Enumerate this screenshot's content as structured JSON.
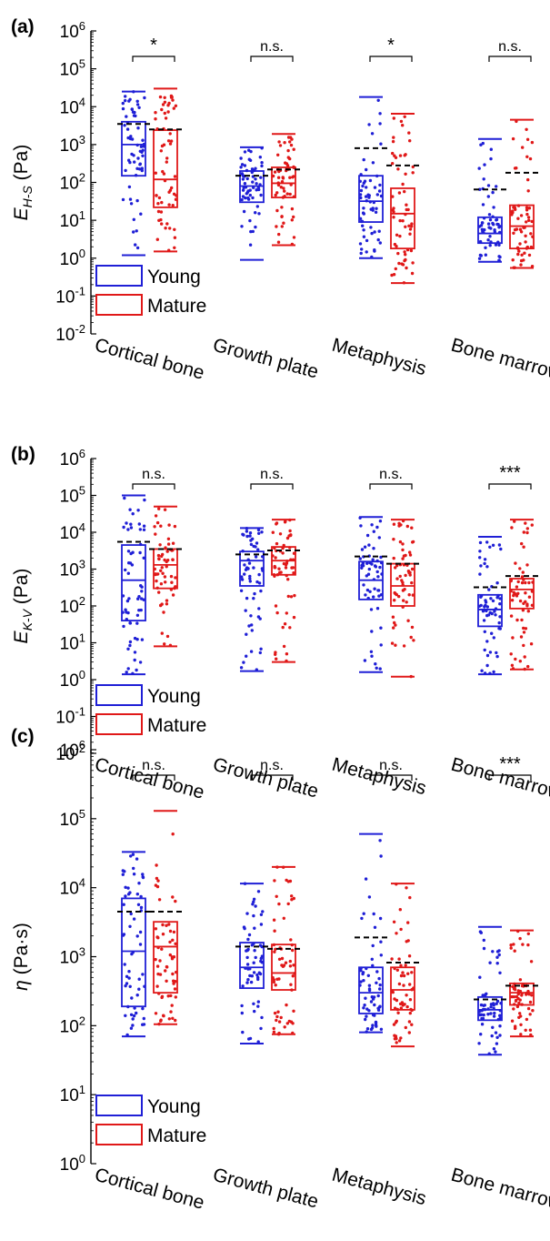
{
  "colors": {
    "young": "#1f1fd6",
    "mature": "#e01818",
    "axis": "#000000",
    "mean": "#000000"
  },
  "chart_data": [
    {
      "panel_label": "(a)",
      "type": "box",
      "yscale": "log",
      "ylim": [
        0.01,
        1000000
      ],
      "y_ticks": [
        {
          "v": 0.01,
          "m": "10",
          "e": "-2"
        },
        {
          "v": 0.1,
          "m": "10",
          "e": "-1"
        },
        {
          "v": 1,
          "m": "10",
          "e": "0"
        },
        {
          "v": 10,
          "m": "10",
          "e": "1"
        },
        {
          "v": 100,
          "m": "10",
          "e": "2"
        },
        {
          "v": 1000,
          "m": "10",
          "e": "3"
        },
        {
          "v": 10000,
          "m": "10",
          "e": "4"
        },
        {
          "v": 100000,
          "m": "10",
          "e": "5"
        },
        {
          "v": 1000000,
          "m": "10",
          "e": "6"
        }
      ],
      "ylabel": {
        "main": "E",
        "sub": "H-S",
        "unit": " (Pa)"
      },
      "categories": [
        "Cortical bone",
        "Growth plate",
        "Metaphysis",
        "Bone marrow"
      ],
      "significance": [
        "*",
        "n.s.",
        "*",
        "n.s."
      ],
      "legend": [
        {
          "label": "Young",
          "color": "#1f1fd6"
        },
        {
          "label": "Mature",
          "color": "#e01818"
        }
      ],
      "series": [
        {
          "name": "Young",
          "boxes": [
            {
              "min": 1.2,
              "q1": 150,
              "median": 1000,
              "q3": 4000,
              "max": 25000,
              "mean": 3500
            },
            {
              "min": 0.9,
              "q1": 30,
              "median": 80,
              "q3": 200,
              "max": 850,
              "mean": 150
            },
            {
              "min": 1.0,
              "q1": 9,
              "median": 32,
              "q3": 150,
              "max": 18000,
              "mean": 800
            },
            {
              "min": 0.8,
              "q1": 2.5,
              "median": 4.5,
              "q3": 12,
              "max": 1400,
              "mean": 65
            }
          ]
        },
        {
          "name": "Mature",
          "boxes": [
            {
              "min": 1.5,
              "q1": 22,
              "median": 120,
              "q3": 2400,
              "max": 30000,
              "mean": 2500
            },
            {
              "min": 2.2,
              "q1": 40,
              "median": 95,
              "q3": 250,
              "max": 1900,
              "mean": 220
            },
            {
              "min": 0.22,
              "q1": 1.8,
              "median": 15,
              "q3": 70,
              "max": 6500,
              "mean": 280
            },
            {
              "min": 0.55,
              "q1": 1.8,
              "median": 7,
              "q3": 25,
              "max": 4500,
              "mean": 180
            }
          ]
        }
      ]
    },
    {
      "panel_label": "(b)",
      "type": "box",
      "yscale": "log",
      "ylim": [
        0.01,
        1000000
      ],
      "y_ticks": [
        {
          "v": 0.01,
          "m": "10",
          "e": "-2"
        },
        {
          "v": 0.1,
          "m": "10",
          "e": "-1"
        },
        {
          "v": 1,
          "m": "10",
          "e": "0"
        },
        {
          "v": 10,
          "m": "10",
          "e": "1"
        },
        {
          "v": 100,
          "m": "10",
          "e": "2"
        },
        {
          "v": 1000,
          "m": "10",
          "e": "3"
        },
        {
          "v": 10000,
          "m": "10",
          "e": "4"
        },
        {
          "v": 100000,
          "m": "10",
          "e": "5"
        },
        {
          "v": 1000000,
          "m": "10",
          "e": "6"
        }
      ],
      "ylabel": {
        "main": "E",
        "sub": "K-V",
        "unit": " (Pa)"
      },
      "categories": [
        "Cortical bone",
        "Growth plate",
        "Metaphysis",
        "Bone marrow"
      ],
      "significance": [
        "n.s.",
        "n.s.",
        "n.s.",
        "***"
      ],
      "legend": [
        {
          "label": "Young",
          "color": "#1f1fd6"
        },
        {
          "label": "Mature",
          "color": "#e01818"
        }
      ],
      "series": [
        {
          "name": "Young",
          "boxes": [
            {
              "min": 1.4,
              "q1": 40,
              "median": 500,
              "q3": 4500,
              "max": 100000,
              "mean": 5500
            },
            {
              "min": 1.7,
              "q1": 350,
              "median": 1700,
              "q3": 3000,
              "max": 13000,
              "mean": 2500
            },
            {
              "min": 1.6,
              "q1": 150,
              "median": 500,
              "q3": 1600,
              "max": 26000,
              "mean": 2200
            },
            {
              "min": 1.4,
              "q1": 28,
              "median": 80,
              "q3": 200,
              "max": 7500,
              "mean": 320
            }
          ]
        },
        {
          "name": "Mature",
          "boxes": [
            {
              "min": 8,
              "q1": 300,
              "median": 1300,
              "q3": 3500,
              "max": 50000,
              "mean": 3500
            },
            {
              "min": 3,
              "q1": 700,
              "median": 1700,
              "q3": 4000,
              "max": 22000,
              "mean": 3200
            },
            {
              "min": 1.2,
              "q1": 100,
              "median": 350,
              "q3": 1400,
              "max": 22000,
              "mean": 1400
            },
            {
              "min": 1.9,
              "q1": 85,
              "median": 280,
              "q3": 550,
              "max": 22000,
              "mean": 650
            }
          ]
        }
      ]
    },
    {
      "panel_label": "(c)",
      "type": "box",
      "yscale": "log",
      "ylim": [
        1,
        1000000
      ],
      "y_ticks": [
        {
          "v": 1,
          "m": "10",
          "e": "0"
        },
        {
          "v": 10,
          "m": "10",
          "e": "1"
        },
        {
          "v": 100,
          "m": "10",
          "e": "2"
        },
        {
          "v": 1000,
          "m": "10",
          "e": "3"
        },
        {
          "v": 10000,
          "m": "10",
          "e": "4"
        },
        {
          "v": 100000,
          "m": "10",
          "e": "5"
        },
        {
          "v": 1000000,
          "m": "10",
          "e": "6"
        }
      ],
      "ylabel": {
        "main": "η",
        "sub": "",
        "unit": " (Pa·s)"
      },
      "categories": [
        "Cortical bone",
        "Growth plate",
        "Metaphysis",
        "Bone marrow"
      ],
      "significance": [
        "n.s.",
        "n.s.",
        "n.s.",
        "***"
      ],
      "legend": [
        {
          "label": "Young",
          "color": "#1f1fd6"
        },
        {
          "label": "Mature",
          "color": "#e01818"
        }
      ],
      "series": [
        {
          "name": "Young",
          "boxes": [
            {
              "min": 70,
              "q1": 190,
              "median": 1200,
              "q3": 7000,
              "max": 33000,
              "mean": 4500
            },
            {
              "min": 55,
              "q1": 350,
              "median": 700,
              "q3": 1600,
              "max": 11500,
              "mean": 1400
            },
            {
              "min": 80,
              "q1": 150,
              "median": 300,
              "q3": 700,
              "max": 60000,
              "mean": 1900
            },
            {
              "min": 38,
              "q1": 120,
              "median": 170,
              "q3": 260,
              "max": 2700,
              "mean": 240
            }
          ]
        },
        {
          "name": "Mature",
          "boxes": [
            {
              "min": 105,
              "q1": 300,
              "median": 1400,
              "q3": 3200,
              "max": 130000,
              "mean": 4500
            },
            {
              "min": 75,
              "q1": 330,
              "median": 580,
              "q3": 1500,
              "max": 20000,
              "mean": 1300
            },
            {
              "min": 50,
              "q1": 170,
              "median": 330,
              "q3": 700,
              "max": 11500,
              "mean": 820
            },
            {
              "min": 70,
              "q1": 200,
              "median": 300,
              "q3": 410,
              "max": 2400,
              "mean": 380
            }
          ]
        }
      ]
    }
  ]
}
